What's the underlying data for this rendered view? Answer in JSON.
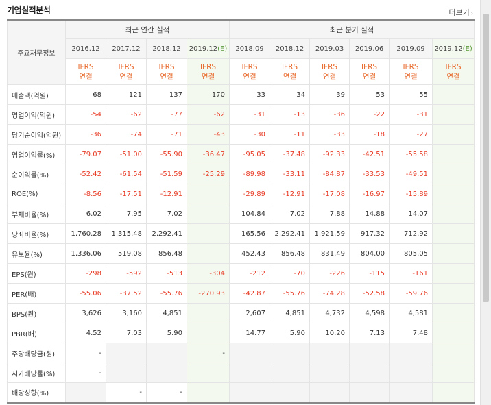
{
  "header": {
    "title": "기업실적분석",
    "more_label": "더보기",
    "more_arrow": "›"
  },
  "table": {
    "row_header_label": "주요재무정보",
    "groups": {
      "annual": "최근 연간 실적",
      "quarter": "최근 분기 실적"
    },
    "periods": [
      {
        "label": "2016.12",
        "estimate": false
      },
      {
        "label": "2017.12",
        "estimate": false
      },
      {
        "label": "2018.12",
        "estimate": false
      },
      {
        "label": "2019.12(E)",
        "estimate": true,
        "base": "2019.12",
        "suffix": "(E)"
      },
      {
        "label": "2018.09",
        "estimate": false
      },
      {
        "label": "2018.12",
        "estimate": false
      },
      {
        "label": "2019.03",
        "estimate": false
      },
      {
        "label": "2019.06",
        "estimate": false
      },
      {
        "label": "2019.09",
        "estimate": false
      },
      {
        "label": "2019.12(E)",
        "estimate": true,
        "base": "2019.12",
        "suffix": "(E)"
      }
    ],
    "basis_line1": "IFRS",
    "basis_line2": "연결",
    "rows": [
      {
        "label": "매출액(억원)",
        "values": [
          "68",
          "121",
          "137",
          "170",
          "33",
          "34",
          "39",
          "53",
          "55",
          ""
        ],
        "section_start": false
      },
      {
        "label": "영업이익(억원)",
        "values": [
          "-54",
          "-62",
          "-77",
          "-62",
          "-31",
          "-13",
          "-36",
          "-22",
          "-31",
          ""
        ],
        "section_start": false
      },
      {
        "label": "당기순이익(억원)",
        "values": [
          "-36",
          "-74",
          "-71",
          "-43",
          "-30",
          "-11",
          "-33",
          "-18",
          "-27",
          ""
        ],
        "section_start": false
      },
      {
        "label": "영업이익률(%)",
        "values": [
          "-79.07",
          "-51.00",
          "-55.90",
          "-36.47",
          "-95.05",
          "-37.48",
          "-92.33",
          "-42.51",
          "-55.58",
          ""
        ],
        "section_start": true
      },
      {
        "label": "순이익률(%)",
        "values": [
          "-52.42",
          "-61.54",
          "-51.59",
          "-25.29",
          "-89.98",
          "-33.11",
          "-84.87",
          "-33.53",
          "-49.51",
          ""
        ],
        "section_start": false
      },
      {
        "label": "ROE(%)",
        "values": [
          "-8.56",
          "-17.51",
          "-12.91",
          "",
          "-29.89",
          "-12.91",
          "-17.08",
          "-16.97",
          "-15.89",
          ""
        ],
        "section_start": false
      },
      {
        "label": "부채비율(%)",
        "values": [
          "6.02",
          "7.95",
          "7.02",
          "",
          "104.84",
          "7.02",
          "7.88",
          "14.88",
          "14.07",
          ""
        ],
        "section_start": true
      },
      {
        "label": "당좌비율(%)",
        "values": [
          "1,760.28",
          "1,315.48",
          "2,292.41",
          "",
          "165.56",
          "2,292.41",
          "1,921.59",
          "917.32",
          "712.92",
          ""
        ],
        "section_start": false
      },
      {
        "label": "유보율(%)",
        "values": [
          "1,336.06",
          "519.08",
          "856.48",
          "",
          "452.43",
          "856.48",
          "831.49",
          "804.00",
          "805.05",
          ""
        ],
        "section_start": false
      },
      {
        "label": "EPS(원)",
        "values": [
          "-298",
          "-592",
          "-513",
          "-304",
          "-212",
          "-70",
          "-226",
          "-115",
          "-161",
          ""
        ],
        "section_start": true
      },
      {
        "label": "PER(배)",
        "values": [
          "-55.06",
          "-37.52",
          "-55.76",
          "-270.93",
          "-42.87",
          "-55.76",
          "-74.28",
          "-52.58",
          "-59.76",
          ""
        ],
        "section_start": false
      },
      {
        "label": "BPS(원)",
        "values": [
          "3,626",
          "3,160",
          "4,851",
          "",
          "2,607",
          "4,851",
          "4,732",
          "4,598",
          "4,581",
          ""
        ],
        "section_start": false
      },
      {
        "label": "PBR(배)",
        "values": [
          "4.52",
          "7.03",
          "5.90",
          "",
          "14.77",
          "5.90",
          "10.20",
          "7.13",
          "7.48",
          ""
        ],
        "section_start": false
      },
      {
        "label": "주당배당금(원)",
        "values": [
          "-",
          "",
          "",
          "-",
          "",
          "",
          "",
          "",
          "",
          ""
        ],
        "section_start": true
      },
      {
        "label": "시가배당률(%)",
        "values": [
          "-",
          "",
          "",
          "",
          "",
          "",
          "",
          "",
          "",
          ""
        ],
        "section_start": false
      },
      {
        "label": "배당성향(%)",
        "values": [
          "",
          "-",
          "-",
          "",
          "",
          "",
          "",
          "",
          "",
          ""
        ],
        "section_start": false
      }
    ]
  },
  "colors": {
    "negative": "#e83a24",
    "ifrs": "#e86a2c",
    "estimate_bg": "#f4f9ef",
    "estimate_text": "#5a9a3a"
  }
}
